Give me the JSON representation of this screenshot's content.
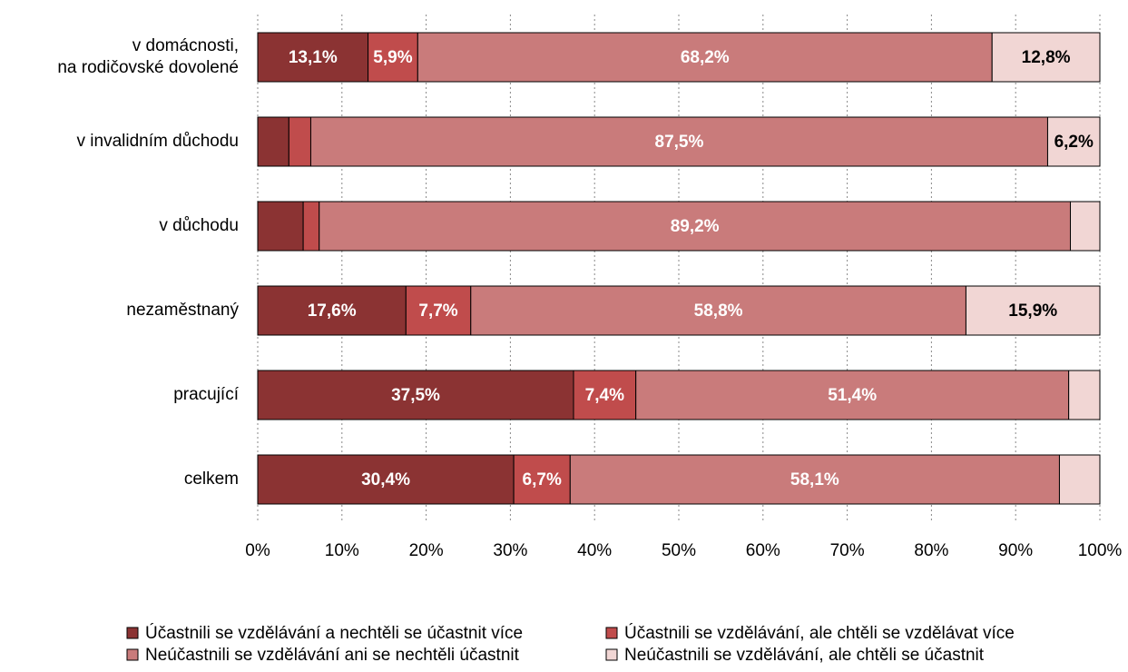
{
  "chart_data": {
    "type": "stacked_barh",
    "categories": [
      "v domácnosti,\nna rodičovské dovolené",
      "v invalidním důchodu",
      "v důchodu",
      "nezaměstnaný",
      "pracující",
      "celkem"
    ],
    "series": [
      {
        "name": "Účastnili se vzdělávání a nechtěli se účastnit více",
        "color": "#8b3333",
        "label_color": "#ffffff",
        "values": [
          13.1,
          3.7,
          5.4,
          17.6,
          37.5,
          30.4
        ],
        "value_labels": [
          "13,1%",
          null,
          null,
          "17,6%",
          "37,5%",
          "30,4%"
        ]
      },
      {
        "name": "Účastnili se vzdělávání, ale chtěli se vzdělávat více",
        "color": "#c04c4c",
        "label_color": "#ffffff",
        "values": [
          5.9,
          2.6,
          1.9,
          7.7,
          7.4,
          6.7
        ],
        "value_labels": [
          "5,9%",
          null,
          null,
          "7,7%",
          "7,4%",
          "6,7%"
        ]
      },
      {
        "name": "Neúčastnili se vzdělávání ani se nechtěli účastnit",
        "color": "#c97b7b",
        "label_color": "#ffffff",
        "values": [
          68.2,
          87.5,
          89.2,
          58.8,
          51.4,
          58.1
        ],
        "value_labels": [
          "68,2%",
          "87,5%",
          "89,2%",
          "58,8%",
          "51,4%",
          "58,1%"
        ]
      },
      {
        "name": "Neúčastnili se vzdělávání, ale chtěli se účastnit",
        "color": "#f1d6d4",
        "label_color": "#000000",
        "values": [
          12.8,
          6.2,
          3.5,
          15.9,
          3.7,
          4.8
        ],
        "value_labels": [
          "12,8%",
          "6,2%",
          null,
          "15,9%",
          null,
          null
        ]
      }
    ],
    "xlim": [
      0,
      100
    ],
    "xticks": [
      {
        "value": 0,
        "label": "0%"
      },
      {
        "value": 10,
        "label": "10%"
      },
      {
        "value": 20,
        "label": "20%"
      },
      {
        "value": 30,
        "label": "30%"
      },
      {
        "value": 40,
        "label": "40%"
      },
      {
        "value": 50,
        "label": "50%"
      },
      {
        "value": 60,
        "label": "60%"
      },
      {
        "value": 70,
        "label": "70%"
      },
      {
        "value": 80,
        "label": "80%"
      },
      {
        "value": 90,
        "label": "90%"
      },
      {
        "value": 100,
        "label": "100%"
      }
    ],
    "grid": true,
    "legend": "bottom"
  }
}
